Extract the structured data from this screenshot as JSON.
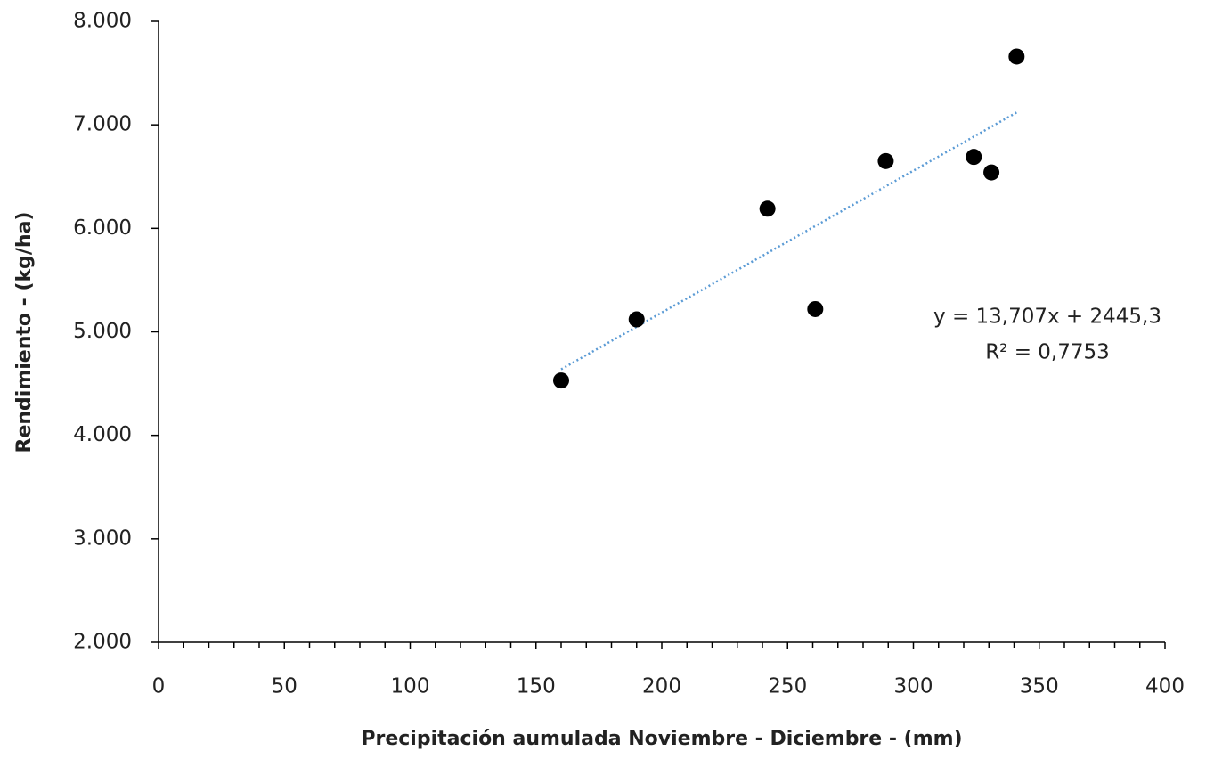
{
  "chart_data": {
    "type": "scatter",
    "x_label": "Precipitación aumulada Noviembre - Diciembre - (mm)",
    "y_label": "Rendimiento - (kg/ha)",
    "series": [
      {
        "color": "#000000",
        "x": [
          160,
          190,
          242,
          261,
          289,
          324,
          331,
          341
        ],
        "values": [
          4530,
          5120,
          6190,
          5220,
          6650,
          6690,
          6540,
          7660
        ]
      }
    ],
    "trendline": {
      "color": "#5b9bd5",
      "x": [
        160,
        341
      ],
      "values": [
        4638,
        7119
      ]
    },
    "annotations": [
      "y = 13,707x + 2445,3",
      "R² = 0,7753"
    ],
    "xlim": [
      0,
      400
    ],
    "ylim": [
      2000,
      8000
    ],
    "xticks": [
      0,
      50,
      100,
      150,
      200,
      250,
      300,
      350,
      400
    ],
    "xminorticks": [
      10,
      20,
      30,
      40,
      60,
      70,
      80,
      90,
      110,
      120,
      130,
      140,
      160,
      170,
      180,
      190,
      210,
      220,
      230,
      240,
      260,
      270,
      280,
      290,
      310,
      320,
      330,
      340,
      360,
      370,
      380,
      390
    ],
    "yticks": [
      {
        "value": 2000,
        "label": "2.000"
      },
      {
        "value": 3000,
        "label": "3.000"
      },
      {
        "value": 4000,
        "label": "4.000"
      },
      {
        "value": 5000,
        "label": "5.000"
      },
      {
        "value": 6000,
        "label": "6.000"
      },
      {
        "value": 7000,
        "label": "7.000"
      },
      {
        "value": 8000,
        "label": "8.000"
      }
    ],
    "grid": false
  }
}
